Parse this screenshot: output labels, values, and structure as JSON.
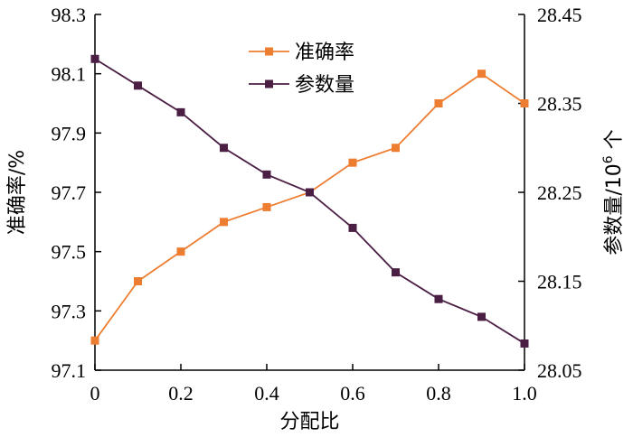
{
  "chart_data": {
    "type": "line",
    "x": [
      0,
      0.1,
      0.2,
      0.3,
      0.4,
      0.5,
      0.6,
      0.7,
      0.8,
      0.9,
      1.0
    ],
    "xlabel": "分配比",
    "x_ticks": [
      "0",
      "0.2",
      "0.4",
      "0.6",
      "0.8",
      "1.0"
    ],
    "x_tick_values": [
      0,
      0.2,
      0.4,
      0.6,
      0.8,
      1.0
    ],
    "xlim": [
      0,
      1.0
    ],
    "left_axis": {
      "label": "准确率/%",
      "ylim": [
        97.1,
        98.3
      ],
      "ticks": [
        "97.1",
        "97.3",
        "97.5",
        "97.7",
        "97.9",
        "98.1",
        "98.3"
      ],
      "tick_values": [
        97.1,
        97.3,
        97.5,
        97.7,
        97.9,
        98.1,
        98.3
      ]
    },
    "right_axis": {
      "label_main": "参数量/10",
      "label_sup": "6",
      "label_tail": " 个",
      "ylim": [
        28.05,
        28.45
      ],
      "ticks": [
        "28.05",
        "28.15",
        "28.25",
        "28.35",
        "28.45"
      ],
      "tick_values": [
        28.05,
        28.15,
        28.25,
        28.35,
        28.45
      ]
    },
    "series": [
      {
        "name": "准确率",
        "axis": "left",
        "color": "#ED7D31",
        "values": [
          97.2,
          97.4,
          97.5,
          97.6,
          97.65,
          97.7,
          97.8,
          97.85,
          98.0,
          98.1,
          98.0
        ]
      },
      {
        "name": "参数量",
        "axis": "right",
        "color": "#4B1E44",
        "values": [
          28.4,
          28.37,
          28.34,
          28.3,
          28.27,
          28.25,
          28.21,
          28.16,
          28.13,
          28.11,
          28.08
        ]
      }
    ],
    "legend_position": "top-center",
    "grid": false
  }
}
